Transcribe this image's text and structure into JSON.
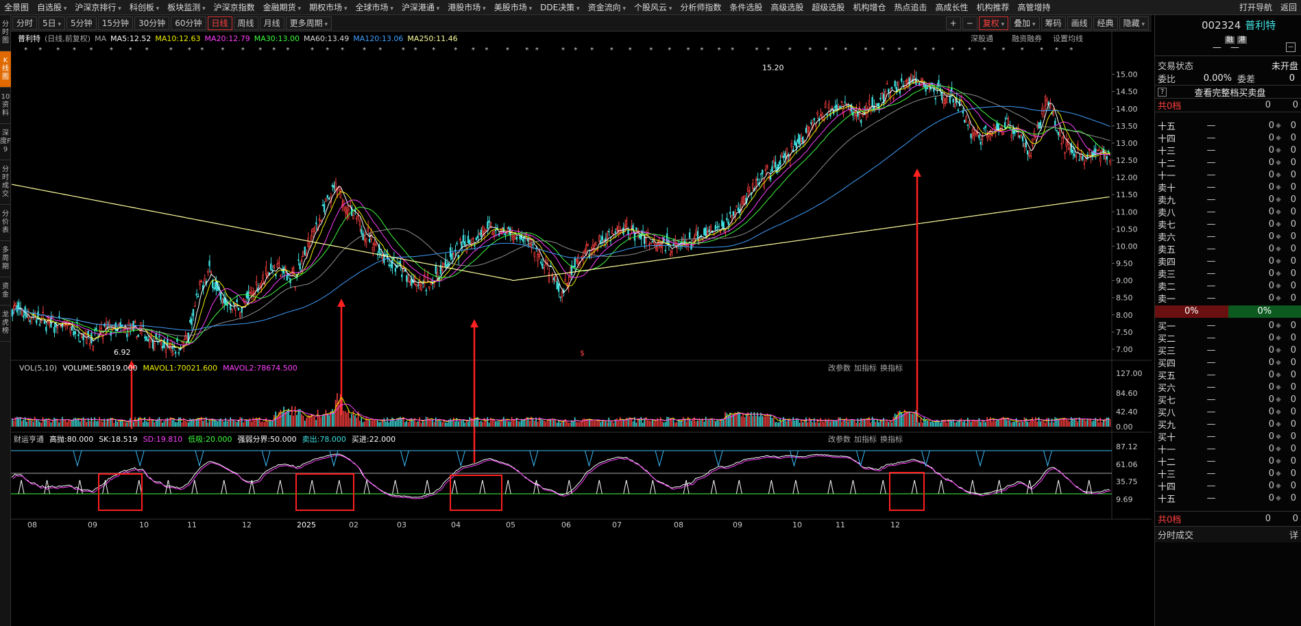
{
  "topnav": {
    "items": [
      {
        "label": "全景图",
        "dd": false
      },
      {
        "label": "自选股",
        "dd": true
      },
      {
        "label": "沪深京排行",
        "dd": true
      },
      {
        "label": "科创板",
        "dd": true
      },
      {
        "label": "板块监测",
        "dd": true
      },
      {
        "label": "沪深京指数",
        "dd": false
      },
      {
        "label": "金融期货",
        "dd": true
      },
      {
        "label": "期权市场",
        "dd": true
      },
      {
        "label": "全球市场",
        "dd": true
      },
      {
        "label": "沪深港通",
        "dd": true
      },
      {
        "label": "港股市场",
        "dd": true
      },
      {
        "label": "美股市场",
        "dd": true
      },
      {
        "label": "DDE决策",
        "dd": true
      },
      {
        "label": "资金流向",
        "dd": true
      },
      {
        "label": "个股风云",
        "dd": true
      },
      {
        "label": "分析师指数",
        "dd": false
      },
      {
        "label": "条件选股",
        "dd": false
      },
      {
        "label": "高级选股",
        "dd": false
      },
      {
        "label": "超级选股",
        "dd": false
      },
      {
        "label": "机构增仓",
        "dd": false
      },
      {
        "label": "热点追击",
        "dd": false
      },
      {
        "label": "高成长性",
        "dd": false
      },
      {
        "label": "机构推荐",
        "dd": false
      },
      {
        "label": "高管增持",
        "dd": false
      }
    ],
    "right": [
      "打开导航",
      "返回"
    ]
  },
  "sidebar": [
    "分时图",
    "K线图",
    "10资料",
    "深度F9",
    "分时成交",
    "分价表",
    "多周期",
    "资金",
    "龙虎榜"
  ],
  "toolbar": {
    "periods": [
      {
        "label": "分时",
        "dd": false
      },
      {
        "label": "5日",
        "dd": true
      },
      {
        "label": "5分钟",
        "dd": false
      },
      {
        "label": "15分钟",
        "dd": false
      },
      {
        "label": "30分钟",
        "dd": false
      },
      {
        "label": "60分钟",
        "dd": false
      },
      {
        "label": "日线",
        "dd": false,
        "active": true
      },
      {
        "label": "周线",
        "dd": false
      },
      {
        "label": "月线",
        "dd": false
      },
      {
        "label": "更多周期",
        "dd": true
      }
    ],
    "right": [
      {
        "label": "+"
      },
      {
        "label": "−"
      },
      {
        "label": "复权",
        "dd": true,
        "red": true
      },
      {
        "label": "叠加",
        "dd": true
      },
      {
        "label": "筹码"
      },
      {
        "label": "画线"
      },
      {
        "label": "经典"
      },
      {
        "label": "隐藏",
        "dd": true
      }
    ]
  },
  "legend": {
    "name": "普利特",
    "period": "(日线,前复权)",
    "ma": "MA",
    "ma5": "MA5:12.52",
    "ma10": "MA10:12.63",
    "ma20": "MA20:12.79",
    "ma30": "MA30:13.00",
    "ma60": "MA60:13.49",
    "ma120": "MA120:13.06",
    "ma250": "MA250:11.46",
    "links": [
      "深股通",
      "融资融券",
      "设置均线"
    ]
  },
  "vol_legend": {
    "label": "VOL(5,10)",
    "volume": "VOLUME:58019.000",
    "mavol1": "MAVOL1:70021.600",
    "mavol2": "MAVOL2:78674.500",
    "links": [
      "改参数",
      "加指标",
      "换指标"
    ]
  },
  "ind_legend": {
    "label": "财运亨通",
    "items": [
      "高抛:80.000",
      "SK:18.519",
      "SD:19.810",
      "低吸:20.000",
      "强弱分界:50.000",
      "卖出:78.000",
      "买进:22.000"
    ],
    "links": [
      "改参数",
      "加指标",
      "换指标"
    ]
  },
  "chart_data": {
    "type": "candlestick",
    "price_axis": [
      "15.00",
      "14.50",
      "14.00",
      "13.50",
      "13.00",
      "12.50",
      "12.00",
      "11.50",
      "11.00",
      "10.50",
      "10.00",
      "9.50",
      "9.00",
      "8.50",
      "8.00",
      "7.50",
      "7.00"
    ],
    "price_range": [
      6.78,
      15.45
    ],
    "high_label": "15.20",
    "low_label": "6.92",
    "vol_axis": [
      "127.00",
      "84.60",
      "42.40",
      "0.00"
    ],
    "ind_axis": [
      "87.12",
      "61.06",
      "35.75",
      "9.69"
    ],
    "months": [
      "08",
      "09",
      "10",
      "11",
      "12",
      "2025",
      "02",
      "03",
      "04",
      "05",
      "06",
      "07",
      "08",
      "09",
      "10",
      "11",
      "12"
    ],
    "colors": {
      "up": "#ff4040",
      "down": "#40e0e0",
      "ma5": "#ffffff",
      "ma10": "#f0f000",
      "ma20": "#ff40ff",
      "ma30": "#40ff40",
      "ma60": "#909090",
      "ma120": "#40a0ff",
      "ma250": "#ffffa0"
    },
    "annotations": {
      "dollar": "$"
    }
  },
  "right_panel": {
    "code": "002324",
    "name": "普利特",
    "tag1": "融",
    "tag2": "港",
    "trade_status_label": "交易状态",
    "trade_status": "未开盘",
    "wb_label": "委比",
    "wb": "0.00%",
    "wc_label": "委差",
    "wc": "0",
    "help": "?",
    "full_book": "查看完整档买卖盘",
    "total_label": "共0档",
    "zero": "0",
    "dash": "—",
    "sells": [
      "十五",
      "十四",
      "十三",
      "十二",
      "十一",
      "卖十",
      "卖九",
      "卖八",
      "卖七",
      "卖六",
      "卖五",
      "卖四",
      "卖三",
      "卖二",
      "卖一"
    ],
    "buys": [
      "买一",
      "买二",
      "买三",
      "买四",
      "买五",
      "买六",
      "买七",
      "买八",
      "买九",
      "买十",
      "十一",
      "十二",
      "十三",
      "十四",
      "十五"
    ],
    "bar_left": "0%",
    "bar_right": "0%",
    "bottom_total": "共0档",
    "tick_label": "分时成交",
    "tick_detail": "详"
  }
}
